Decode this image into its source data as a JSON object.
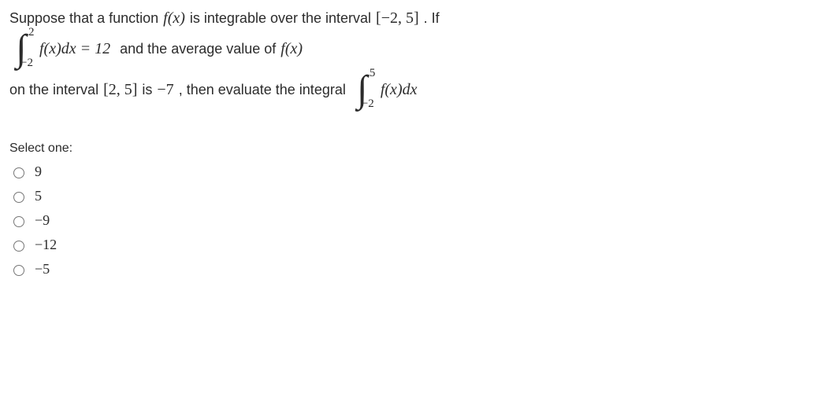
{
  "question": {
    "line1_prefix": "Suppose that a function ",
    "fx": "f(x)",
    "line1_mid": " is integrable over the interval ",
    "interval_full": "[−2, 5]",
    "line1_suffix": ".  If",
    "integral1": {
      "lower": "−2",
      "upper": "2",
      "body": "f(x)dx",
      "equals": " = 12"
    },
    "line2_mid": "  and the average value of  ",
    "line3_prefix": "on the interval ",
    "interval_25": "[2, 5]",
    "line3_mid1": "   is   ",
    "neg7": "−7",
    "line3_mid2": ", then evaluate the integral   ",
    "integral2": {
      "lower": "−2",
      "upper": "5",
      "body": "f(x)dx"
    }
  },
  "select_label": "Select one:",
  "options": [
    {
      "label": "9"
    },
    {
      "label": "5"
    },
    {
      "label": "−9"
    },
    {
      "label": "−12"
    },
    {
      "label": "−5"
    }
  ],
  "styles": {
    "text_color": "#2c2c2c",
    "background": "#ffffff",
    "body_fontsize": 18,
    "math_fontsize": 20,
    "option_fontsize": 18
  }
}
